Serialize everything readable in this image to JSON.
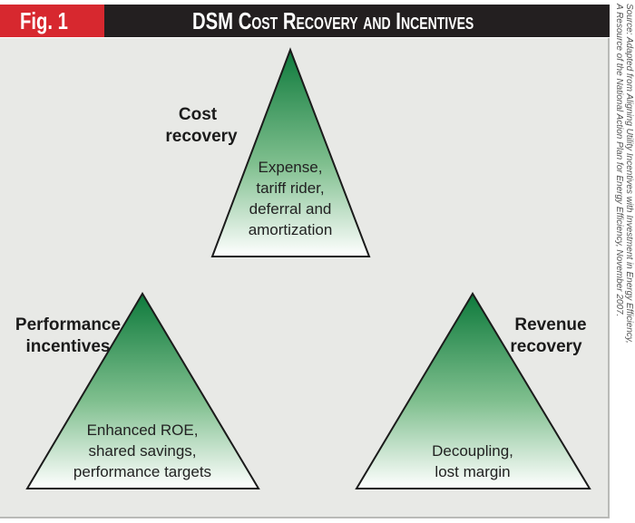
{
  "figure_label": "Fig. 1",
  "title": "DSM Cost Recovery and Incentives",
  "source_line1": "Source: Adapted from Aligning Utility Incentives with Investment in Energy Efficiency,",
  "source_line2": "A Resource of the National Action Plan for Energy Efficiency, November 2007.",
  "triangles": [
    {
      "heading": [
        "Cost",
        "recovery"
      ],
      "body": [
        "Expense,",
        "tariff rider,",
        "deferral and",
        "amortization"
      ]
    },
    {
      "heading": [
        "Performance",
        "incentives"
      ],
      "body": [
        "Enhanced ROE,",
        "shared savings,",
        "performance targets"
      ]
    },
    {
      "heading": [
        "Revenue",
        "recovery"
      ],
      "body": [
        "Decoupling,",
        "lost margin"
      ]
    }
  ],
  "colors": {
    "red": "#d7282f",
    "black": "#231f20",
    "green": "#0e7a3c",
    "panel": "#e8e9e6"
  }
}
